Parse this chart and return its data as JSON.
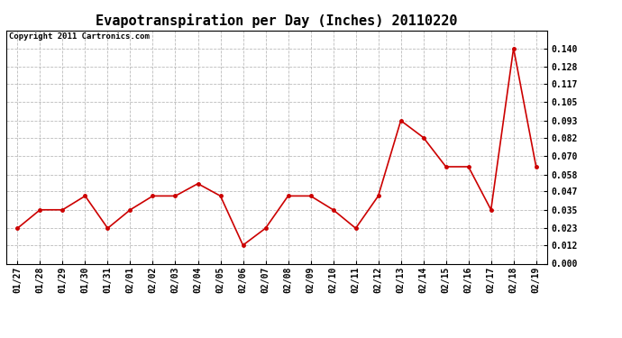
{
  "title": "Evapotranspiration per Day (Inches) 20110220",
  "copyright_text": "Copyright 2011 Cartronics.com",
  "x_labels": [
    "01/27",
    "01/28",
    "01/29",
    "01/30",
    "01/31",
    "02/01",
    "02/02",
    "02/03",
    "02/04",
    "02/05",
    "02/06",
    "02/07",
    "02/08",
    "02/09",
    "02/10",
    "02/11",
    "02/12",
    "02/13",
    "02/14",
    "02/15",
    "02/16",
    "02/17",
    "02/18",
    "02/19"
  ],
  "y_values": [
    0.023,
    0.035,
    0.035,
    0.044,
    0.023,
    0.035,
    0.044,
    0.044,
    0.052,
    0.044,
    0.012,
    0.023,
    0.044,
    0.044,
    0.035,
    0.023,
    0.044,
    0.093,
    0.082,
    0.063,
    0.063,
    0.035,
    0.14,
    0.063
  ],
  "line_color": "#cc0000",
  "marker": "o",
  "marker_size": 2.5,
  "line_width": 1.2,
  "ylim": [
    0.0,
    0.1516
  ],
  "yticks": [
    0.0,
    0.012,
    0.023,
    0.035,
    0.047,
    0.058,
    0.07,
    0.082,
    0.093,
    0.105,
    0.117,
    0.128,
    0.14
  ],
  "grid_color": "#bbbbbb",
  "background_color": "#ffffff",
  "plot_bg_color": "#ffffff",
  "title_fontsize": 11,
  "copyright_fontsize": 6.5,
  "tick_fontsize": 7,
  "figsize": [
    6.9,
    3.75
  ]
}
